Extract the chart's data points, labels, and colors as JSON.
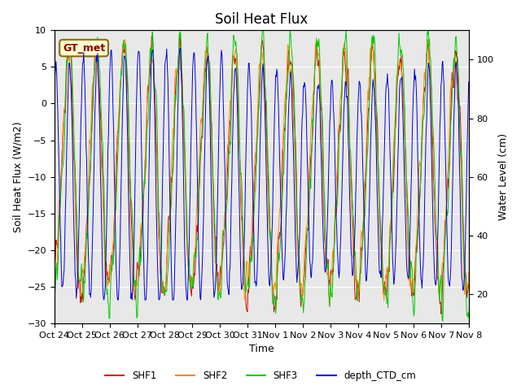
{
  "title": "Soil Heat Flux",
  "ylabel_left": "Soil Heat Flux (W/m2)",
  "ylabel_right": "Water Level (cm)",
  "xlabel": "Time",
  "ylim_left": [
    -30,
    10
  ],
  "ylim_right": [
    10,
    110
  ],
  "annotation": "GT_met",
  "legend_labels": [
    "SHF1",
    "SHF2",
    "SHF3",
    "depth_CTD_cm"
  ],
  "line_colors": {
    "SHF1": "#dd0000",
    "SHF2": "#ff8800",
    "SHF3": "#00cc00",
    "depth_CTD_cm": "#0000dd"
  },
  "xtick_labels": [
    "Oct 24",
    "Oct 25",
    "Oct 26",
    "Oct 27",
    "Oct 28",
    "Oct 29",
    "Oct 30",
    "Oct 31",
    "Nov 1",
    "Nov 2",
    "Nov 3",
    "Nov 4",
    "Nov 5",
    "Nov 6",
    "Nov 7",
    "Nov 8"
  ],
  "n_days": 15,
  "pts_per_day": 48,
  "background_color": "#e8e8e8",
  "title_fontsize": 12,
  "axis_fontsize": 9,
  "tick_fontsize": 8
}
